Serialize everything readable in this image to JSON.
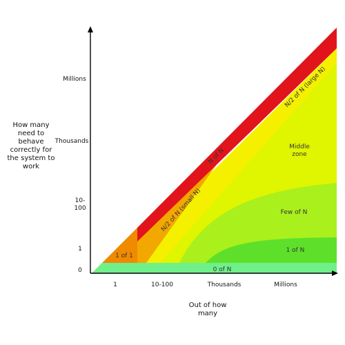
{
  "axes": {
    "y_title": "How many\nneed to\nbehave\ncorrectly for\nthe system to\nwork",
    "x_title": "Out of how\nmany",
    "y_ticks": [
      "Millions",
      "Thousands",
      "10-\n100",
      "1",
      "0"
    ],
    "x_ticks": [
      "1",
      "10-100",
      "Thousands",
      "Millions"
    ]
  },
  "zones": {
    "n_of_n": "N of N",
    "n2_large": "N/2 of N (large N)",
    "n2_small": "N/2 of N (small N)",
    "middle": "Middle\nzone",
    "few": "Few of N",
    "one_of_n": "1 of N",
    "one_of_one": "1 of 1",
    "zero_of_n": "0 of N"
  },
  "colors": {
    "n_of_n": "#e2141b",
    "n2_band": "#f2a800",
    "yellow": "#f4f000",
    "middle": "#e0f500",
    "few": "#aaf01c",
    "one_of_n": "#5ee02a",
    "one_of_one": "#f08a00",
    "zero_of_n": "#6ff08a"
  }
}
